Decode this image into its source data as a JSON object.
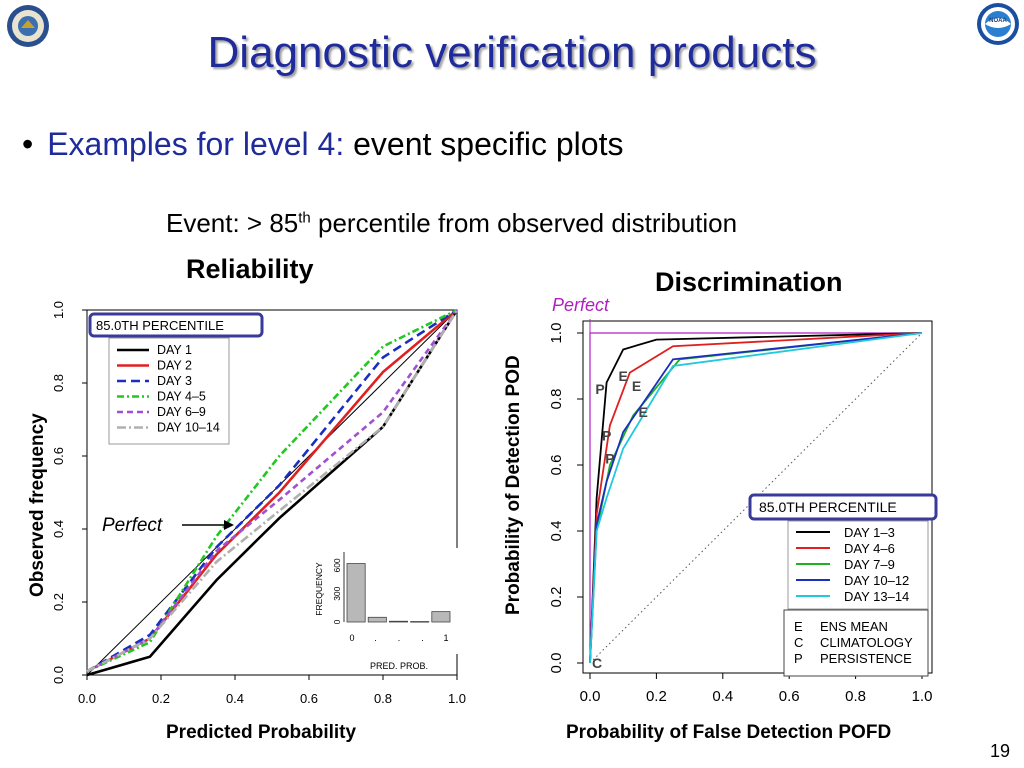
{
  "slide": {
    "title": "Diagnostic verification products",
    "bullet_prefix": "Examples for level 4:",
    "bullet_rest": "event specific plots",
    "event_pre": "Event: > 85",
    "event_sup": "th",
    "event_post": " percentile from observed distribution",
    "reliability_heading": "Reliability",
    "discrimination_heading": "Discrimination",
    "page_number": "19",
    "logo_left": "doc-seal-icon",
    "logo_right": "noaa-logo-icon",
    "noaa_text": "NOAA"
  },
  "chart_data": [
    {
      "type": "line",
      "name": "reliability",
      "xlabel": "Predicted Probability",
      "ylabel": "Observed frequency",
      "xlim": [
        0,
        1
      ],
      "ylim": [
        0,
        1
      ],
      "x_ticks": [
        "0.0",
        "0.2",
        "0.4",
        "0.6",
        "0.8",
        "1.0"
      ],
      "y_ticks": [
        "0.0",
        "0.2",
        "0.4",
        "0.6",
        "0.8",
        "1.0"
      ],
      "legend_title": "85.0TH PERCENTILE",
      "legend_position": "top-left",
      "perfect_label": "Perfect",
      "series": [
        {
          "name": "DAY 1",
          "color": "#000000",
          "dash": "",
          "x": [
            0,
            0.17,
            0.35,
            0.52,
            0.8,
            1.0
          ],
          "y": [
            0.0,
            0.05,
            0.26,
            0.43,
            0.68,
            1.0
          ]
        },
        {
          "name": "DAY 2",
          "color": "#e02020",
          "dash": "",
          "x": [
            0,
            0.17,
            0.35,
            0.52,
            0.8,
            1.0
          ],
          "y": [
            0.01,
            0.1,
            0.33,
            0.5,
            0.83,
            1.0
          ]
        },
        {
          "name": "DAY 3",
          "color": "#1a2fbf",
          "dash": "9,5",
          "x": [
            0,
            0.17,
            0.35,
            0.52,
            0.8,
            1.0
          ],
          "y": [
            0.01,
            0.11,
            0.35,
            0.52,
            0.87,
            1.0
          ]
        },
        {
          "name": "DAY 4–5",
          "color": "#20c820",
          "dash": "7,3,2,3",
          "x": [
            0,
            0.17,
            0.35,
            0.52,
            0.8,
            1.0
          ],
          "y": [
            0.01,
            0.09,
            0.38,
            0.6,
            0.9,
            1.0
          ]
        },
        {
          "name": "DAY 6–9",
          "color": "#a050d0",
          "dash": "6,4",
          "x": [
            0,
            0.17,
            0.35,
            0.52,
            0.8,
            1.0
          ],
          "y": [
            0.01,
            0.1,
            0.34,
            0.48,
            0.72,
            1.0
          ]
        },
        {
          "name": "DAY 10–14",
          "color": "#b0b0b0",
          "dash": "9,3,2,3",
          "x": [
            0,
            0.17,
            0.35,
            0.52,
            0.8,
            1.0
          ],
          "y": [
            0.01,
            0.1,
            0.31,
            0.45,
            0.68,
            1.0
          ]
        }
      ],
      "inset_histogram": {
        "ylabel": "FREQUENCY",
        "xlabel": "PRED. PROB.",
        "y_ticks": [
          "0",
          "300",
          "600"
        ],
        "x_ticks": [
          "0",
          ".",
          ".",
          ".",
          "1"
        ],
        "values": [
          620,
          50,
          8,
          5,
          110
        ]
      }
    },
    {
      "type": "line",
      "name": "discrimination",
      "xlabel": "Probability of False Detection POFD",
      "ylabel": "Probability of Detection POD",
      "xlim": [
        0,
        1
      ],
      "ylim": [
        0,
        1
      ],
      "x_ticks": [
        "0.0",
        "0.2",
        "0.4",
        "0.6",
        "0.8",
        "1.0"
      ],
      "y_ticks": [
        "0.0",
        "0.2",
        "0.4",
        "0.6",
        "0.8",
        "1.0"
      ],
      "legend_title": "85.0TH PERCENTILE",
      "legend_position": "bottom-right",
      "perfect_label": "Perfect",
      "series": [
        {
          "name": "DAY 1–3",
          "color": "#000000",
          "x": [
            0,
            0.02,
            0.05,
            0.1,
            0.2,
            1.0
          ],
          "y": [
            0,
            0.5,
            0.85,
            0.95,
            0.98,
            1.0
          ]
        },
        {
          "name": "DAY 4–6",
          "color": "#e02020",
          "x": [
            0,
            0.02,
            0.06,
            0.12,
            0.25,
            1.0
          ],
          "y": [
            0,
            0.45,
            0.72,
            0.88,
            0.96,
            1.0
          ]
        },
        {
          "name": "DAY 7–9",
          "color": "#20b020",
          "x": [
            0,
            0.02,
            0.06,
            0.13,
            0.27,
            1.0
          ],
          "y": [
            0,
            0.4,
            0.6,
            0.75,
            0.92,
            1.0
          ]
        },
        {
          "name": "DAY 10–12",
          "color": "#1a2fbf",
          "x": [
            0,
            0.02,
            0.05,
            0.1,
            0.25,
            1.0
          ],
          "y": [
            0,
            0.42,
            0.55,
            0.7,
            0.92,
            1.0
          ]
        },
        {
          "name": "DAY 13–14",
          "color": "#20c8e0",
          "x": [
            0,
            0.02,
            0.05,
            0.1,
            0.25,
            1.0
          ],
          "y": [
            0,
            0.4,
            0.5,
            0.65,
            0.9,
            1.0
          ]
        }
      ],
      "markers_legend": [
        {
          "symbol": "E",
          "label": "ENS MEAN"
        },
        {
          "symbol": "C",
          "label": "CLIMATOLOGY"
        },
        {
          "symbol": "P",
          "label": "PERSISTENCE"
        }
      ],
      "markers": [
        {
          "symbol": "P",
          "x": 0.01,
          "y": 0.83
        },
        {
          "symbol": "P",
          "x": 0.03,
          "y": 0.69
        },
        {
          "symbol": "P",
          "x": 0.04,
          "y": 0.62
        },
        {
          "symbol": "E",
          "x": 0.08,
          "y": 0.87
        },
        {
          "symbol": "E",
          "x": 0.12,
          "y": 0.84
        },
        {
          "symbol": "E",
          "x": 0.14,
          "y": 0.76
        },
        {
          "symbol": "C",
          "x": 0.0,
          "y": 0.0
        }
      ]
    }
  ]
}
